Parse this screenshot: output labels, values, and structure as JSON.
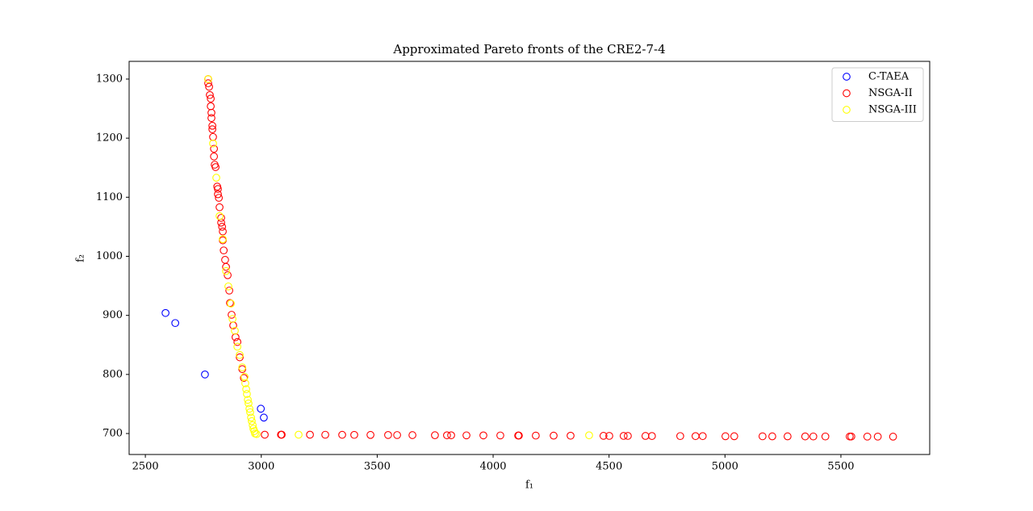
{
  "chart_data": {
    "type": "scatter",
    "title": "Approximated Pareto fronts of the CRE2-7-4",
    "xlabel": "f₁",
    "ylabel": "f₂",
    "xlim": [
      2430,
      5883
    ],
    "ylim": [
      664.5,
      1330
    ],
    "xticks": [
      2500,
      3000,
      3500,
      4000,
      4500,
      5000,
      5500
    ],
    "yticks": [
      700,
      800,
      900,
      1000,
      1100,
      1200,
      1300
    ],
    "legend": "upper right",
    "series": [
      {
        "name": "C-TAEA",
        "color": "#0000ff",
        "x": [
          2587,
          2629,
          2757,
          2998,
          3011
        ],
        "y": [
          904,
          887,
          800,
          742,
          727
        ]
      },
      {
        "name": "NSGA-II",
        "color": "#ff0000",
        "x": [
          2771,
          2771,
          2775,
          2778,
          2782,
          2782,
          2785,
          2785,
          2789,
          2789,
          2792,
          2796,
          2796,
          2799,
          2803,
          2810,
          2813,
          2813,
          2817,
          2820,
          2827,
          2827,
          2831,
          2834,
          2834,
          2838,
          2844,
          2848,
          2855,
          2862,
          2865,
          2872,
          2879,
          2889,
          2897,
          2907,
          2918,
          2925,
          3015,
          3085,
          3088,
          3210,
          3276,
          3349,
          3401,
          3471,
          3547,
          3586,
          3652,
          3749,
          3801,
          3819,
          3885,
          3958,
          4031,
          4108,
          4111,
          4184,
          4261,
          4334,
          4476,
          4501,
          4563,
          4581,
          4657,
          4685,
          4807,
          4873,
          4904,
          5002,
          5040,
          5162,
          5204,
          5270,
          5346,
          5381,
          5433,
          5538,
          5545,
          5614,
          5659,
          5725
        ],
        "y": [
          1300,
          1293,
          1287,
          1273,
          1267,
          1254,
          1243,
          1234,
          1221,
          1215,
          1202,
          1182,
          1169,
          1155,
          1151,
          1118,
          1114,
          1105,
          1099,
          1083,
          1065,
          1057,
          1050,
          1042,
          1027,
          1010,
          994,
          982,
          968,
          942,
          921,
          901,
          883,
          863,
          855,
          829,
          809,
          794,
          698,
          698,
          698,
          698,
          697.9,
          697.8,
          697.7,
          697.6,
          697.5,
          697.4,
          697.3,
          697.1,
          697,
          697,
          696.9,
          696.8,
          696.7,
          696.6,
          696.6,
          696.5,
          696.4,
          696.3,
          696.1,
          696,
          696,
          696,
          695.9,
          695.8,
          695.7,
          695.6,
          695.6,
          695.4,
          695.4,
          695.3,
          695.2,
          695.2,
          695.1,
          695,
          695,
          694.9,
          694.9,
          694.8,
          694.8,
          694.7
        ]
      },
      {
        "name": "NSGA-III",
        "color": "#ffff00",
        "x": [
          2771,
          2792,
          2806,
          2820,
          2834,
          2848,
          2858,
          2869,
          2876,
          2886,
          2897,
          2907,
          2918,
          2928,
          2931,
          2935,
          2938,
          2942,
          2945,
          2949,
          2952,
          2956,
          2959,
          2963,
          2966,
          2970,
          2973,
          2980,
          3161,
          4414
        ],
        "y": [
          1300,
          1191,
          1133,
          1068,
          1029,
          975,
          949,
          920,
          894,
          874,
          847,
          833,
          812,
          796,
          785,
          775,
          767,
          757,
          751,
          742,
          736,
          727,
          721,
          714,
          708,
          704,
          700,
          699,
          698,
          697
        ]
      }
    ]
  }
}
